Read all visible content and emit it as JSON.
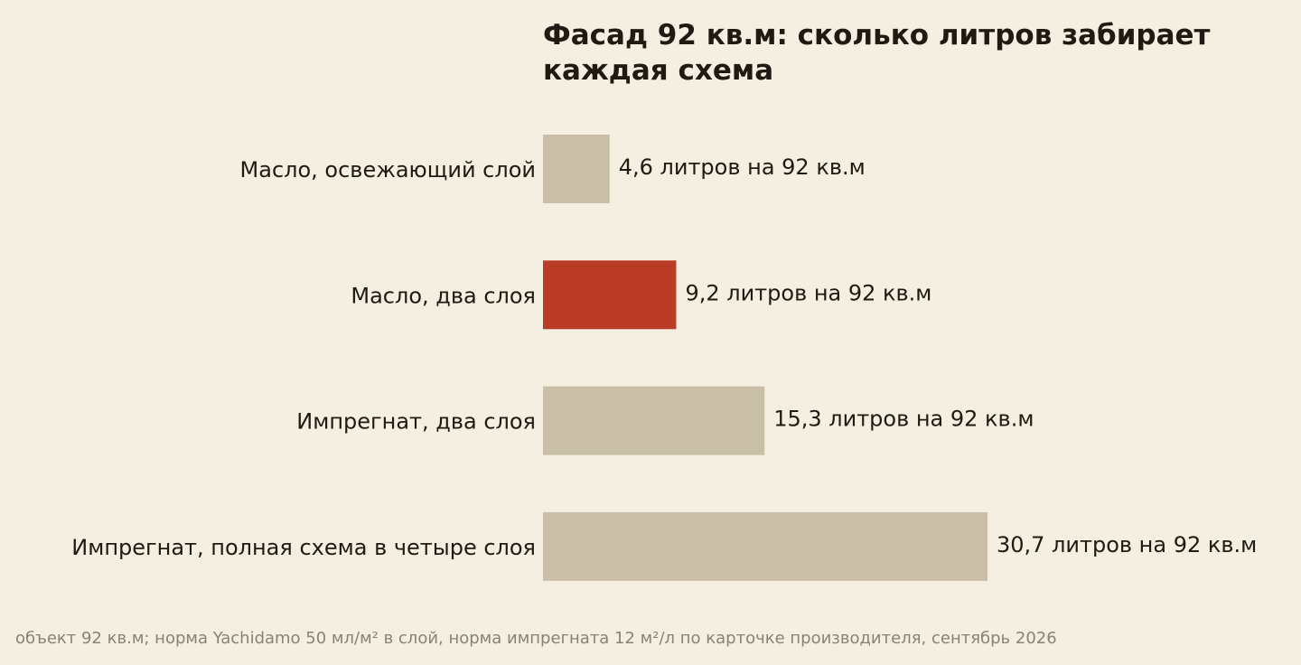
{
  "chart_data": {
    "type": "bar",
    "orientation": "horizontal",
    "title": "Фасад 92 кв.м: сколько литров забирает каждая схема",
    "xlabel": "",
    "ylabel": "",
    "grid": false,
    "xlim": [
      0,
      30.7
    ],
    "categories": [
      "Масло, освежающий слой",
      "Масло, два слоя",
      "Импрегнат, два слоя",
      "Импрегнат, полная схема в четыре слоя"
    ],
    "values": [
      4.6,
      9.2,
      15.3,
      30.7
    ],
    "value_labels": [
      "4,6 литров на 92 кв.м",
      "9,2 литров на 92 кв.м",
      "15,3 литров на 92 кв.м",
      "30,7 литров на 92 кв.м"
    ],
    "highlight_index": 1,
    "colors": {
      "bar": "#c9bfa7",
      "highlight": "#bb3c26",
      "background": "#f5efe2",
      "text": "#1f1a12",
      "footnote": "#8a8273"
    },
    "footnote": "объект 92 кв.м; норма Yachidamo 50 мл/м² в слой, норма импрегната 12 м²/л по карточке производителя, сентябрь 2026"
  }
}
